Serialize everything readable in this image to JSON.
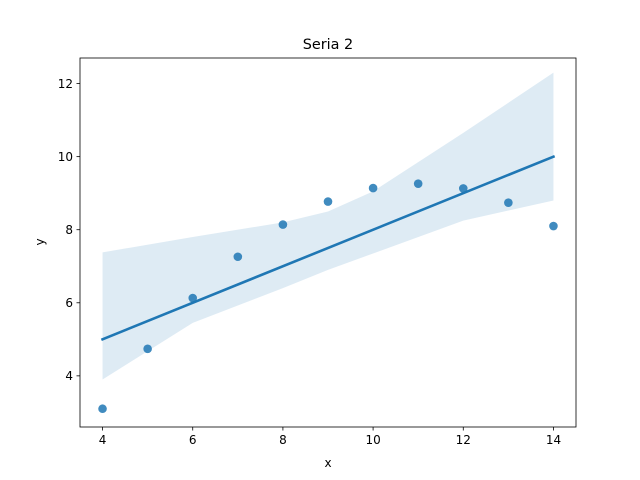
{
  "chart_data": {
    "type": "scatter",
    "title": "Seria 2",
    "xlabel": "x",
    "ylabel": "y",
    "xlim": [
      3.5,
      14.5
    ],
    "ylim": [
      2.6,
      12.7
    ],
    "xticks": [
      4,
      6,
      8,
      10,
      12,
      14
    ],
    "yticks": [
      4,
      6,
      8,
      10,
      12
    ],
    "grid": false,
    "series": [
      {
        "x": [
          4,
          5,
          6,
          7,
          8,
          9,
          10,
          11,
          12,
          13,
          14
        ],
        "y": [
          3.1,
          4.74,
          6.13,
          7.26,
          8.14,
          8.77,
          9.14,
          9.26,
          9.13,
          8.74,
          8.1
        ]
      }
    ],
    "regression_line": {
      "x": [
        4,
        14
      ],
      "y": [
        5.0,
        10.0
      ]
    },
    "confidence_band": {
      "x": [
        4,
        6,
        8,
        9,
        10,
        12,
        14
      ],
      "lower": [
        3.9,
        5.45,
        6.4,
        6.9,
        7.35,
        8.25,
        8.8
      ],
      "upper": [
        7.38,
        7.8,
        8.2,
        8.5,
        9.05,
        10.65,
        12.3
      ]
    },
    "colors": {
      "marker": "#1f77b4",
      "line": "#1f77b4",
      "band": "#1f77b4"
    }
  }
}
